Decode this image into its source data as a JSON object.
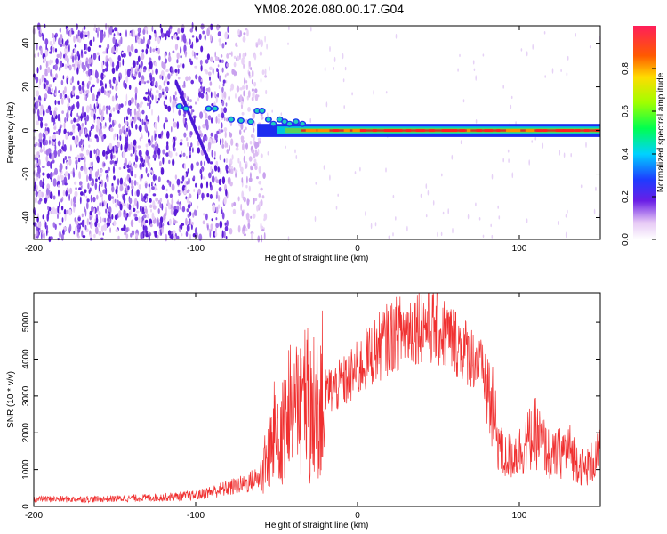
{
  "title": "YM08.2026.080.00.17.G04",
  "chart_data": [
    {
      "type": "heatmap",
      "xlabel": "Height of straight line (km)",
      "ylabel": "Frequency (Hz)",
      "xlim": [
        -200,
        150
      ],
      "ylim": [
        -50,
        48
      ],
      "xticks": [
        "-200",
        "-100",
        "0",
        "100"
      ],
      "xtick_values": [
        -200,
        -100,
        0,
        100
      ],
      "yticks": [
        "-40",
        "-20",
        "0",
        "20",
        "40"
      ],
      "ytick_values": [
        -40,
        -20,
        0,
        20,
        40
      ],
      "colorbar": {
        "label": "Normalized spectral amplitude",
        "ticks": [
          "0.0",
          "0.2",
          "0.4",
          "0.6",
          "0.8"
        ],
        "tick_values": [
          0.0,
          0.2,
          0.4,
          0.6,
          0.8
        ],
        "range": [
          0,
          1
        ]
      },
      "features": {
        "carrier_frequency_hz": 0,
        "carrier_start_km": -75,
        "noise_end_km": -60
      }
    },
    {
      "type": "line",
      "xlabel": "Height of straight line (km)",
      "ylabel": "SNR (10 * v/v)",
      "xlim": [
        -200,
        150
      ],
      "ylim": [
        0,
        5800
      ],
      "xticks": [
        "-200",
        "-100",
        "0",
        "100"
      ],
      "xtick_values": [
        -200,
        -100,
        0,
        100
      ],
      "yticks": [
        "0",
        "1000",
        "2000",
        "3000",
        "4000",
        "5000"
      ],
      "ytick_values": [
        0,
        1000,
        2000,
        3000,
        4000,
        5000
      ],
      "color": "#f03030",
      "series": [
        {
          "x": [
            -200,
            -180,
            -160,
            -140,
            -120,
            -100,
            -90,
            -80,
            -70,
            -60,
            -55,
            -50,
            -45,
            -40,
            -30,
            -20,
            -10,
            0,
            10,
            20,
            30,
            40,
            50,
            60,
            70,
            75,
            80,
            85,
            90,
            100,
            110,
            120,
            130,
            140,
            150
          ],
          "values": [
            200,
            200,
            200,
            220,
            250,
            300,
            400,
            500,
            600,
            800,
            1400,
            2200,
            2500,
            2600,
            2900,
            3100,
            3300,
            3700,
            4200,
            4600,
            4800,
            5000,
            4800,
            4500,
            4100,
            3900,
            3300,
            2200,
            1300,
            1500,
            2000,
            1300,
            1600,
            1000,
            1400
          ]
        }
      ]
    }
  ]
}
